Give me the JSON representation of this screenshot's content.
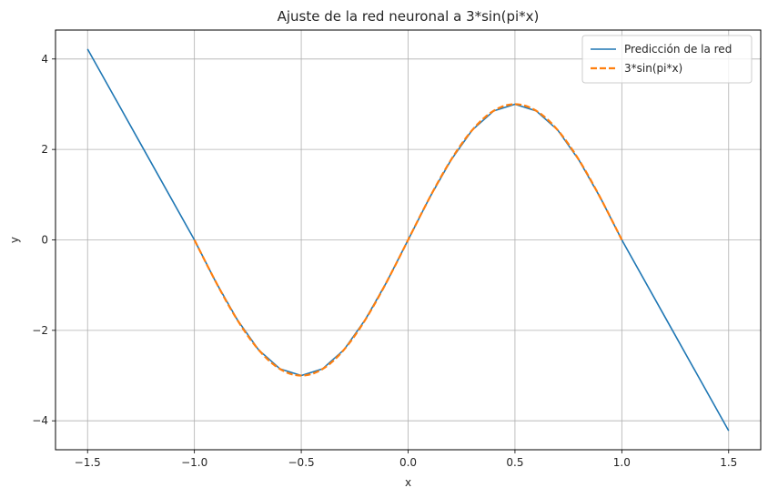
{
  "chart_data": {
    "type": "line",
    "title": "Ajuste de la red neuronal a 3*sin(pi*x)",
    "xlabel": "x",
    "ylabel": "y",
    "xlim": [
      -1.65,
      1.65
    ],
    "ylim": [
      -4.64,
      4.64
    ],
    "xticks": [
      -1.5,
      -1.0,
      -0.5,
      0.0,
      0.5,
      1.0,
      1.5
    ],
    "xtick_labels": [
      "−1.5",
      "−1.0",
      "−0.5",
      "0.0",
      "0.5",
      "1.0",
      "1.5"
    ],
    "yticks": [
      4,
      2,
      0,
      -2,
      -4
    ],
    "ytick_labels": [
      "4",
      "2",
      "0",
      "−2",
      "−4"
    ],
    "grid": true,
    "legend_position": "top-right",
    "series": [
      {
        "name": "Predicción de la red",
        "color": "#1f77b4",
        "style": "solid",
        "x": [
          -1.5,
          -1.25,
          -1.0,
          -0.9,
          -0.8,
          -0.7,
          -0.6,
          -0.5,
          -0.4,
          -0.3,
          -0.2,
          -0.1,
          0.0,
          0.1,
          0.2,
          0.3,
          0.4,
          0.5,
          0.6,
          0.7,
          0.8,
          0.9,
          1.0,
          1.25,
          1.5
        ],
        "y": [
          4.22,
          2.11,
          0.0,
          -0.93,
          -1.76,
          -2.43,
          -2.85,
          -3.0,
          -2.85,
          -2.43,
          -1.76,
          -0.93,
          0.0,
          0.93,
          1.76,
          2.43,
          2.85,
          3.0,
          2.85,
          2.43,
          1.76,
          0.93,
          0.0,
          -2.11,
          -4.22
        ]
      },
      {
        "name": "3*sin(pi*x)",
        "color": "#ff7f0e",
        "style": "dashed",
        "function": "3*sin(pi*x)",
        "x_range": [
          -1.0,
          1.0
        ]
      }
    ]
  }
}
